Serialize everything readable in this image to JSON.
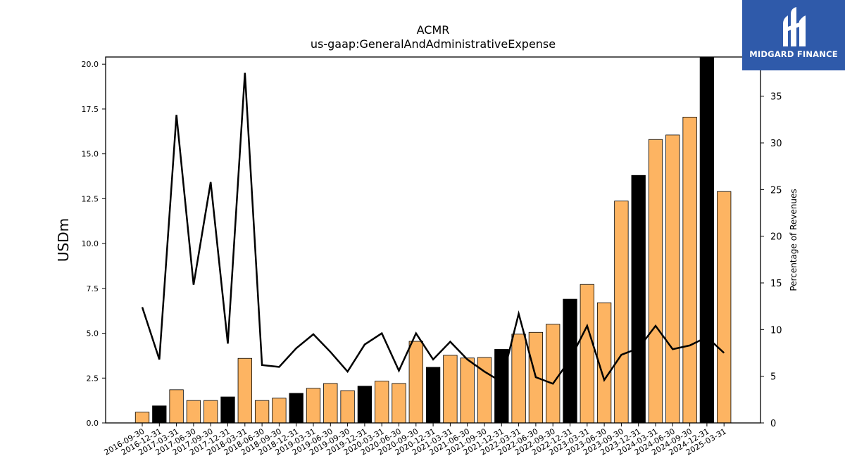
{
  "chart_data": {
    "type": "bar",
    "title": "ACMR",
    "subtitle": "us-gaap:GeneralAndAdministrativeExpense",
    "ylabel": "USDm",
    "y2label": "Percentage of Revenues",
    "ylim": [
      0,
      20.4
    ],
    "y2lim": [
      0,
      39.2
    ],
    "yticks": [
      "0.0",
      "2.5",
      "5.0",
      "7.5",
      "10.0",
      "12.5",
      "15.0",
      "17.5",
      "20.0"
    ],
    "y2ticks": [
      "0",
      "5",
      "10",
      "15",
      "20",
      "25",
      "30",
      "35"
    ],
    "categories": [
      "2016-09-30",
      "2016-12-31",
      "2017-03-31",
      "2017-06-30",
      "2017-09-30",
      "2017-12-31",
      "2018-03-31",
      "2018-06-30",
      "2018-09-30",
      "2018-12-31",
      "2019-03-31",
      "2019-06-30",
      "2019-09-30",
      "2019-12-31",
      "2020-03-31",
      "2020-06-30",
      "2020-09-30",
      "2020-12-31",
      "2021-03-31",
      "2021-06-30",
      "2021-09-30",
      "2021-12-31",
      "2022-03-31",
      "2022-06-30",
      "2022-09-30",
      "2022-12-31",
      "2023-03-31",
      "2023-06-30",
      "2023-09-30",
      "2023-12-31",
      "2024-03-31",
      "2024-06-30",
      "2024-09-30",
      "2024-12-31",
      "2025-03-31"
    ],
    "series": [
      {
        "kind": "bar",
        "axis": "left",
        "values": [
          0.6,
          0.95,
          1.85,
          1.25,
          1.25,
          1.45,
          3.6,
          1.25,
          1.38,
          1.65,
          1.93,
          2.2,
          1.8,
          2.05,
          2.33,
          2.2,
          4.55,
          3.1,
          3.77,
          3.62,
          3.65,
          4.1,
          4.95,
          5.05,
          5.5,
          6.9,
          7.72,
          6.7,
          12.37,
          13.8,
          15.8,
          16.05,
          17.05,
          20.4,
          12.9
        ],
        "quarter_type": [
          "Q3",
          "Q4",
          "Q1",
          "Q2",
          "Q3",
          "Q4",
          "Q1",
          "Q2",
          "Q3",
          "Q4",
          "Q1",
          "Q2",
          "Q3",
          "Q4",
          "Q1",
          "Q2",
          "Q3",
          "Q4",
          "Q1",
          "Q2",
          "Q3",
          "Q4",
          "Q1",
          "Q2",
          "Q3",
          "Q4",
          "Q1",
          "Q2",
          "Q3",
          "Q4",
          "Q1",
          "Q2",
          "Q3",
          "Q4",
          "Q1"
        ]
      },
      {
        "kind": "line",
        "axis": "right",
        "values": [
          12.4,
          6.8,
          33.0,
          14.8,
          25.8,
          8.5,
          37.5,
          6.2,
          6.0,
          8.0,
          9.5,
          7.6,
          5.5,
          8.4,
          9.6,
          5.6,
          9.6,
          6.8,
          8.7,
          6.8,
          5.5,
          4.4,
          11.7,
          4.9,
          4.2,
          6.8,
          10.4,
          4.6,
          7.3,
          8.0,
          10.4,
          7.9,
          8.3,
          9.2,
          7.5
        ]
      }
    ],
    "colors": {
      "bar_regular": "#fdb462",
      "bar_q4": "#000000",
      "line": "#000000",
      "logo_bg": "#2f5aaa"
    },
    "grid": false
  },
  "logo": {
    "text": "MIDGARD FINANCE",
    "icon": "midgard-logo-icon"
  }
}
